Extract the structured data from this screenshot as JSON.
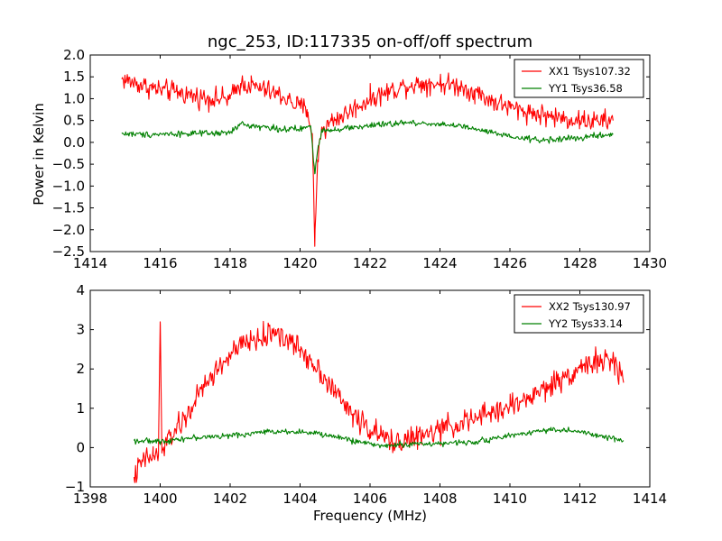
{
  "chart_data": [
    {
      "type": "line",
      "title": "ngc_253, ID:117335 on-off/off spectrum",
      "xlabel": "",
      "ylabel": "Power in Kelvin",
      "xlim": [
        1414,
        1430
      ],
      "ylim": [
        -2.5,
        2.0
      ],
      "xticks": [
        "1414",
        "1416",
        "1418",
        "1420",
        "1422",
        "1424",
        "1426",
        "1428",
        "1430"
      ],
      "yticks": [
        "−2.5",
        "−2.0",
        "−1.5",
        "−1.0",
        "−0.5",
        "0.0",
        "0.5",
        "1.0",
        "1.5",
        "2.0"
      ],
      "legend_position": "top-right",
      "series": [
        {
          "name": "XX1 Tsys107.32",
          "color": "#ff0000",
          "noise": 0.17,
          "x": [
            1414.9,
            1415.5,
            1416.0,
            1416.5,
            1417.0,
            1417.5,
            1418.0,
            1418.3,
            1418.6,
            1419.0,
            1419.5,
            1419.9,
            1420.2,
            1420.35,
            1420.42,
            1420.5,
            1420.62,
            1420.7,
            1420.9,
            1421.2,
            1421.6,
            1422.0,
            1422.5,
            1423.0,
            1423.5,
            1424.0,
            1424.5,
            1425.0,
            1425.5,
            1426.0,
            1426.5,
            1427.0,
            1427.5,
            1428.0,
            1428.5,
            1428.95
          ],
          "y": [
            1.45,
            1.3,
            1.2,
            1.15,
            1.05,
            1.0,
            1.0,
            1.35,
            1.3,
            1.2,
            1.05,
            0.85,
            0.75,
            0.2,
            -2.38,
            -0.4,
            0.35,
            0.3,
            0.5,
            0.6,
            0.8,
            1.0,
            1.15,
            1.3,
            1.35,
            1.35,
            1.3,
            1.15,
            0.95,
            0.8,
            0.7,
            0.62,
            0.55,
            0.5,
            0.48,
            0.5
          ]
        },
        {
          "name": "YY1 Tsys36.58",
          "color": "#008000",
          "noise": 0.05,
          "x": [
            1414.9,
            1415.5,
            1416.5,
            1417.5,
            1418.0,
            1418.3,
            1418.6,
            1419.0,
            1419.5,
            1420.0,
            1420.3,
            1420.42,
            1420.5,
            1420.62,
            1420.7,
            1421.0,
            1422.0,
            1423.0,
            1424.0,
            1424.5,
            1425.0,
            1425.5,
            1426.0,
            1426.5,
            1427.0,
            1427.5,
            1428.0,
            1428.5,
            1428.95
          ],
          "y": [
            0.2,
            0.18,
            0.2,
            0.2,
            0.22,
            0.42,
            0.38,
            0.35,
            0.3,
            0.3,
            0.38,
            -0.72,
            -0.2,
            0.3,
            0.28,
            0.3,
            0.38,
            0.45,
            0.42,
            0.38,
            0.3,
            0.22,
            0.12,
            0.08,
            0.05,
            0.08,
            0.1,
            0.15,
            0.18
          ]
        }
      ]
    },
    {
      "type": "line",
      "title": "",
      "xlabel": "Frequency (MHz)",
      "ylabel": "",
      "xlim": [
        1398,
        1414
      ],
      "ylim": [
        -1,
        4
      ],
      "xticks": [
        "1398",
        "1400",
        "1402",
        "1404",
        "1406",
        "1408",
        "1410",
        "1412",
        "1414"
      ],
      "yticks": [
        "−1",
        "0",
        "1",
        "2",
        "3",
        "4"
      ],
      "legend_position": "top-right",
      "series": [
        {
          "name": "XX2 Tsys130.97",
          "color": "#ff0000",
          "noise": 0.22,
          "x": [
            1399.25,
            1399.5,
            1399.8,
            1399.95,
            1400.0,
            1400.05,
            1400.3,
            1400.7,
            1401.0,
            1401.5,
            1402.0,
            1402.5,
            1403.0,
            1403.3,
            1403.5,
            1404.0,
            1404.5,
            1405.0,
            1405.5,
            1406.0,
            1406.3,
            1406.6,
            1407.0,
            1407.5,
            1408.0,
            1408.5,
            1409.0,
            1409.5,
            1410.0,
            1410.5,
            1411.0,
            1411.5,
            1412.0,
            1412.5,
            1413.0,
            1413.25
          ],
          "y": [
            -0.75,
            -0.35,
            -0.2,
            -0.2,
            3.2,
            -0.1,
            0.3,
            0.7,
            1.2,
            1.85,
            2.35,
            2.7,
            2.8,
            3.0,
            2.8,
            2.5,
            2.05,
            1.4,
            0.85,
            0.45,
            0.3,
            0.15,
            0.2,
            0.28,
            0.45,
            0.6,
            0.72,
            0.9,
            1.05,
            1.25,
            1.5,
            1.75,
            2.05,
            2.2,
            2.15,
            1.65
          ]
        },
        {
          "name": "YY2 Tsys33.14",
          "color": "#008000",
          "noise": 0.05,
          "x": [
            1399.25,
            1400.0,
            1400.5,
            1401.0,
            1401.5,
            1402.0,
            1402.5,
            1403.0,
            1403.5,
            1404.0,
            1404.5,
            1405.0,
            1405.5,
            1406.0,
            1406.3,
            1406.5,
            1407.0,
            1407.5,
            1408.0,
            1408.5,
            1409.0,
            1409.5,
            1410.0,
            1410.5,
            1411.0,
            1411.5,
            1412.0,
            1412.5,
            1413.0,
            1413.25
          ],
          "y": [
            0.18,
            0.15,
            0.22,
            0.25,
            0.28,
            0.3,
            0.35,
            0.4,
            0.42,
            0.4,
            0.35,
            0.28,
            0.18,
            0.1,
            0.05,
            0.05,
            0.08,
            0.1,
            0.1,
            0.12,
            0.15,
            0.22,
            0.3,
            0.38,
            0.45,
            0.45,
            0.4,
            0.3,
            0.22,
            0.18
          ]
        }
      ]
    }
  ]
}
